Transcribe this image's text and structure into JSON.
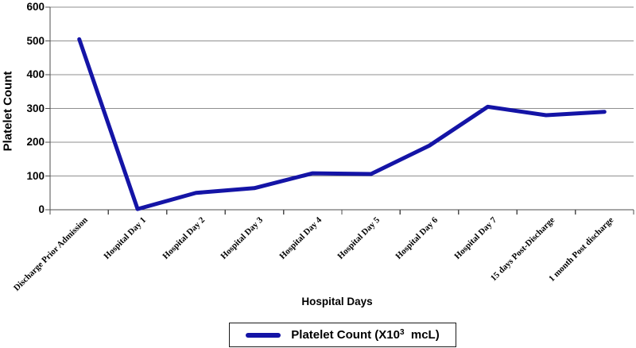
{
  "chart_data": {
    "type": "line",
    "title": "",
    "xlabel": "Hospital Days",
    "ylabel": "Platelet Count",
    "categories": [
      "Discharge Prior Admission",
      "Hospital Day 1",
      "Hospital Day 2",
      "Hospital Day 3",
      "Hospital Day 4",
      "Hospital Day 5",
      "Hospital Day 6",
      "Hospital Day 7",
      "15 days Post-Discharge",
      "1 month Post discharge"
    ],
    "series": [
      {
        "name": "Platelet Count (X10^3 mcL)",
        "values": [
          505,
          2,
          50,
          64,
          108,
          106,
          190,
          305,
          280,
          290
        ]
      }
    ],
    "ylim": [
      0,
      600
    ],
    "y_tick_step": 100,
    "y_ticks": [
      "0",
      "100",
      "200",
      "300",
      "400",
      "500",
      "600"
    ],
    "grid": "horizontal",
    "legend_position": "bottom",
    "legend": {
      "prefix": "Platelet Count (X10",
      "sup": "3",
      "suffix": "  mcL)"
    },
    "colors": {
      "line": "#1414a6",
      "gridline": "#8f8f8f",
      "axis": "#4d4d4d",
      "text": "#000000"
    }
  }
}
